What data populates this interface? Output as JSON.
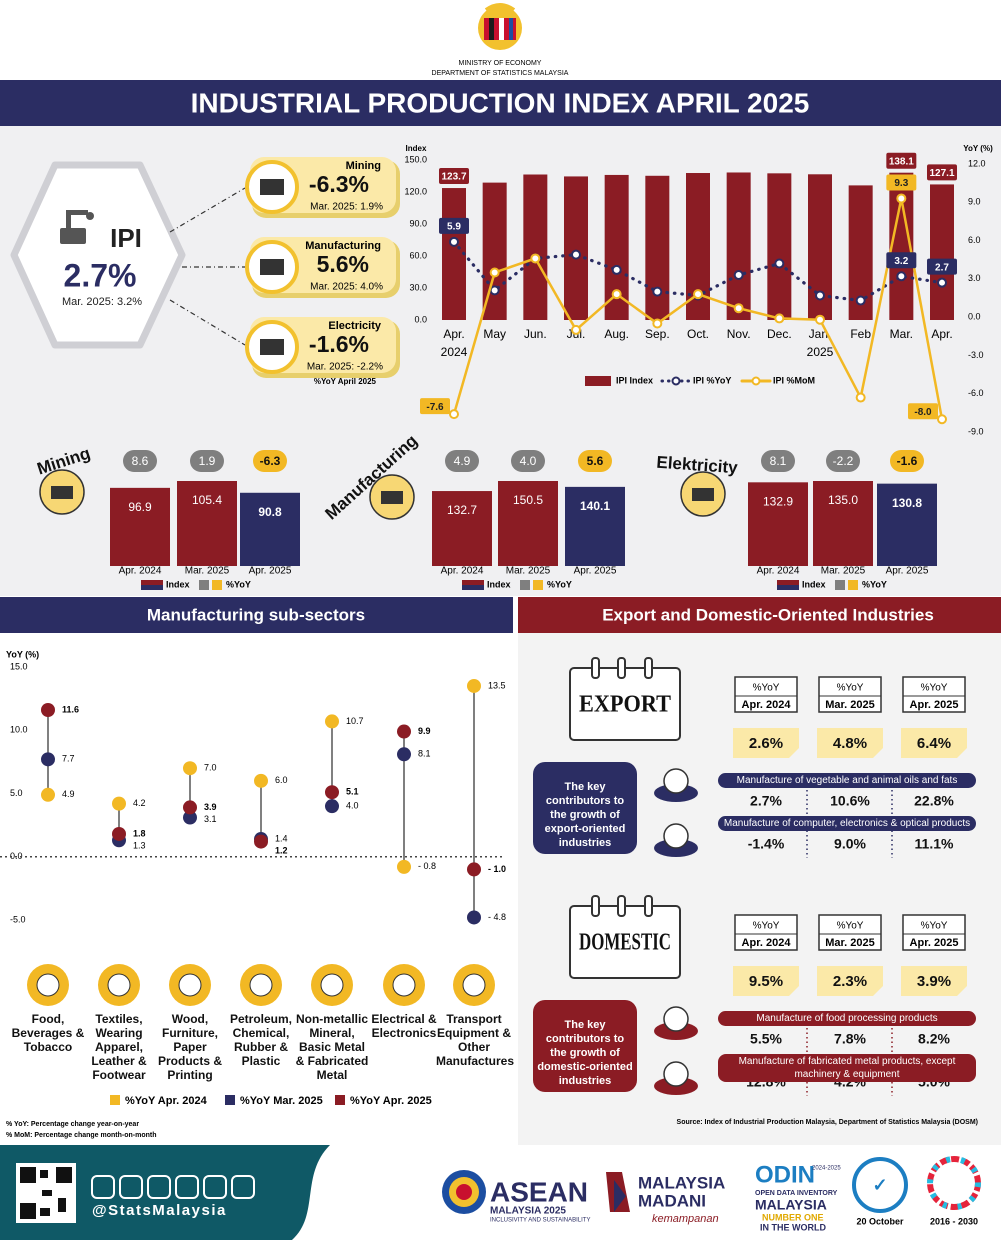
{
  "header": {
    "ministry": "MINISTRY OF ECONOMY",
    "department": "DEPARTMENT OF STATISTICS MALAYSIA",
    "title": "INDUSTRIAL PRODUCTION INDEX APRIL 2025"
  },
  "summary": {
    "ipi": {
      "label": "IPI",
      "value": "2.7%",
      "previous": "Mar. 2025: 3.2%"
    },
    "sectors": [
      {
        "name": "Mining",
        "value": "-6.3%",
        "previous": "Mar. 2025: 1.9%"
      },
      {
        "name": "Manufacturing",
        "value": "5.6%",
        "previous": "Mar. 2025: 4.0%"
      },
      {
        "name": "Electricity",
        "value": "-1.6%",
        "previous": "Mar. 2025: -2.2%"
      }
    ],
    "note": "%YoY April 2025"
  },
  "chart_data": [
    {
      "type": "combo",
      "y_label": "Index",
      "y2_label": "YoY (%)",
      "categories": [
        "Apr.",
        "May",
        "Jun.",
        "Jul.",
        "Aug.",
        "Sep.",
        "Oct.",
        "Nov.",
        "Dec.",
        "Jan.",
        "Feb",
        "Mar.",
        "Apr."
      ],
      "year_labels": [
        "2024",
        null,
        null,
        null,
        null,
        null,
        null,
        null,
        null,
        "2025",
        null,
        null,
        null
      ],
      "ylim": [
        0,
        150
      ],
      "yticks": [
        {
          "value": 0,
          "label": "0.0"
        },
        {
          "value": 30,
          "label": "30.0"
        },
        {
          "value": 60,
          "label": "60.0"
        },
        {
          "value": 90,
          "label": "90.0"
        },
        {
          "value": 120,
          "label": "120.0"
        },
        {
          "value": 150,
          "label": "150.0"
        }
      ],
      "y2lim": [
        -9,
        12
      ],
      "y2ticks": [
        {
          "value": -9,
          "label": "-9.0"
        },
        {
          "value": -6,
          "label": "-6.0"
        },
        {
          "value": -3,
          "label": "-3.0"
        },
        {
          "value": 0,
          "label": "0.0"
        },
        {
          "value": 3,
          "label": "3.0"
        },
        {
          "value": 6,
          "label": "6.0"
        },
        {
          "value": 9,
          "label": "9.0"
        },
        {
          "value": 12,
          "label": "12.0"
        }
      ],
      "series": [
        {
          "name": "IPI Index",
          "type": "bar",
          "color": "#8b1c24",
          "values": [
            123.7,
            128.8,
            136.4,
            134.6,
            136.0,
            135.2,
            137.8,
            138.3,
            137.5,
            136.6,
            126.2,
            138.1,
            127.1
          ],
          "value_labels": [
            "123.7",
            null,
            null,
            null,
            null,
            null,
            null,
            null,
            null,
            null,
            null,
            "138.1",
            "127.1"
          ]
        },
        {
          "name": "IPI %YoY",
          "type": "line",
          "axis": "y2",
          "dash": true,
          "color": "#2b2d63",
          "values": [
            5.9,
            2.1,
            4.6,
            4.9,
            3.7,
            2.0,
            1.7,
            3.3,
            4.2,
            1.7,
            1.3,
            3.2,
            2.7
          ],
          "value_labels": [
            "5.9",
            null,
            null,
            null,
            null,
            null,
            null,
            null,
            null,
            null,
            null,
            "3.2",
            "2.7"
          ]
        },
        {
          "name": "IPI %MoM",
          "type": "line",
          "axis": "y2",
          "dash": false,
          "color": "#f2b824",
          "values": [
            -7.6,
            3.5,
            4.6,
            -1.0,
            1.8,
            -0.5,
            1.8,
            0.7,
            -0.1,
            -0.2,
            -6.3,
            9.3,
            -8.0
          ],
          "value_labels": [
            "-7.6",
            null,
            null,
            null,
            null,
            null,
            null,
            null,
            null,
            null,
            null,
            "9.3",
            "-8.0"
          ]
        }
      ]
    },
    {
      "type": "bar",
      "title": "Mining",
      "categories": [
        "Apr. 2024",
        "Mar. 2025",
        "Apr. 2025"
      ],
      "series": [
        {
          "name": "Index",
          "colors": [
            "#8b1c24",
            "#8b1c24",
            "#2b2d63"
          ],
          "values": [
            96.9,
            105.4,
            90.8
          ]
        },
        {
          "name": "%YoY",
          "colors": [
            "#7f7f7f",
            "#7f7f7f",
            "#f2b824"
          ],
          "values": [
            8.6,
            1.9,
            -6.3
          ]
        }
      ]
    },
    {
      "type": "bar",
      "title": "Manufacturing",
      "categories": [
        "Apr. 2024",
        "Mar. 2025",
        "Apr. 2025"
      ],
      "series": [
        {
          "name": "Index",
          "colors": [
            "#8b1c24",
            "#8b1c24",
            "#2b2d63"
          ],
          "values": [
            132.7,
            150.5,
            140.1
          ]
        },
        {
          "name": "%YoY",
          "colors": [
            "#7f7f7f",
            "#7f7f7f",
            "#f2b824"
          ],
          "values": [
            4.9,
            4.0,
            5.6
          ],
          "value_labels": [
            "4.9",
            "4.0",
            "5.6"
          ]
        }
      ]
    },
    {
      "type": "bar",
      "title": "Elektricity",
      "categories": [
        "Apr. 2024",
        "Mar. 2025",
        "Apr. 2025"
      ],
      "series": [
        {
          "name": "Index",
          "colors": [
            "#8b1c24",
            "#8b1c24",
            "#2b2d63"
          ],
          "values": [
            132.9,
            135.0,
            130.8
          ],
          "value_labels": [
            "132.9",
            "135.0",
            "130.8"
          ]
        },
        {
          "name": "%YoY",
          "colors": [
            "#7f7f7f",
            "#7f7f7f",
            "#f2b824"
          ],
          "values": [
            8.1,
            -2.2,
            -1.6
          ]
        }
      ]
    },
    {
      "type": "lollipop",
      "y_label": "YoY (%)",
      "ylim": [
        -5,
        15
      ],
      "yticks": [
        {
          "value": 15,
          "label": "15.0"
        },
        {
          "value": 10,
          "label": "10.0"
        },
        {
          "value": 5,
          "label": "5.0"
        },
        {
          "value": 0,
          "label": "0.0"
        },
        {
          "value": -5,
          "label": "-5.0"
        }
      ],
      "categories": [
        "Food, Beverages & Tobacco",
        "Textiles, Wearing Apparel, Leather & Footwear",
        "Wood, Furniture, Paper Products & Printing",
        "Petroleum, Chemical, Rubber & Plastic",
        "Non-metallic Mineral, Basic Metal & Fabricated Metal",
        "Electrical & Electronics",
        "Transport Equipment & Other Manufactures"
      ],
      "series": [
        {
          "name": "%YoY Apr. 2024",
          "color": "#f2b824",
          "values": [
            4.9,
            4.2,
            7.0,
            6.0,
            10.7,
            -0.8,
            13.5
          ],
          "value_labels": [
            "4.9",
            "4.2",
            "7.0",
            "6.0",
            "10.7",
            "- 0.8",
            "13.5"
          ]
        },
        {
          "name": "%YoY Mar. 2025",
          "color": "#2b2d63",
          "values": [
            7.7,
            1.3,
            3.1,
            1.4,
            4.0,
            8.1,
            -4.8
          ],
          "value_labels": [
            "7.7",
            "1.3",
            "3.1",
            "1.4",
            "4.0",
            "8.1",
            "- 4.8"
          ]
        },
        {
          "name": "%YoY Apr. 2025",
          "color": "#8b1c24",
          "values": [
            11.6,
            1.8,
            3.9,
            1.2,
            5.1,
            9.9,
            -1.0
          ],
          "value_labels": [
            "11.6",
            "1.8",
            "3.9",
            "1.2",
            "5.1",
            "9.9",
            "- 1.0"
          ]
        }
      ]
    }
  ],
  "sections": {
    "manufacturing": "Manufacturing sub-sectors",
    "orientation": "Export and Domestic-Oriented Industries"
  },
  "notes": [
    "% YoY: Percentage change year-on-year",
    "% MoM: Percentage change month-on-month"
  ],
  "orientation": {
    "period_header": "%YoY",
    "periods": [
      "Apr. 2024",
      "Mar. 2025",
      "Apr. 2025"
    ],
    "groups": [
      {
        "label": "EXPORT",
        "color": "#2b2d63",
        "values": [
          "2.6%",
          "4.8%",
          "6.4%"
        ],
        "contributors_label": "The key contributors to the growth of export-oriented industries",
        "items": [
          {
            "name": "Manufacture of vegetable and animal oils and fats",
            "values": [
              "2.7%",
              "10.6%",
              "22.8%"
            ]
          },
          {
            "name": "Manufacture of computer, electronics & optical products",
            "values": [
              "-1.4%",
              "9.0%",
              "11.1%"
            ]
          }
        ]
      },
      {
        "label": "DOMESTIC",
        "color": "#8b1c24",
        "values": [
          "9.5%",
          "2.3%",
          "3.9%"
        ],
        "contributors_label": "The key contributors to the growth of domestic-oriented industries",
        "items": [
          {
            "name": "Manufacture of food processing products",
            "values": [
              "5.5%",
              "7.8%",
              "8.2%"
            ]
          },
          {
            "name": "Manufacture of fabricated metal products, except machinery & equipment",
            "values": [
              "12.8%",
              "4.2%",
              "5.0%"
            ]
          }
        ]
      }
    ]
  },
  "source": "Source: Index of Industrial Production Malaysia, Department of Statistics Malaysia (DOSM)",
  "footer": {
    "handle": "@StatsMalaysia",
    "asean": [
      "ASEAN",
      "MALAYSIA 2025",
      "INCLUSIVITY AND SUSTAINABILITY"
    ],
    "madani": [
      "MALAYSIA",
      "MADANI",
      "kemampanan"
    ],
    "odin": [
      "ODIN",
      "2024-2025",
      "OPEN DATA INVENTORY",
      "MALAYSIA",
      "NUMBER ONE",
      "IN THE WORLD"
    ],
    "date": "20 October",
    "sdg": "2016 - 2030"
  }
}
